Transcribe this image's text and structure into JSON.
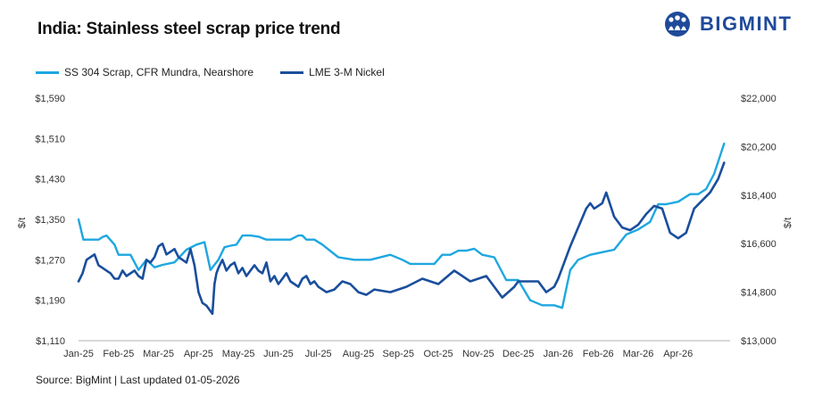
{
  "header": {
    "title": "India: Stainless steel scrap price trend",
    "logo_text": "BIGMINT"
  },
  "footer": {
    "source": "Source: BigMint | Last updated 01-05-2026"
  },
  "colors": {
    "ss304": "#1ea7e0",
    "nickel": "#1a4e9c",
    "logo": "#1f4a9a"
  },
  "icons": {
    "logo": "people-group-icon"
  },
  "chart_data": {
    "type": "line",
    "title": "India: Stainless steel scrap price trend",
    "legend_position": "top-left",
    "grid": false,
    "y_left": {
      "label": "$/t",
      "range": [
        1110,
        1590
      ],
      "ticks": [
        "$1,110",
        "$1,190",
        "$1,270",
        "$1,350",
        "$1,430",
        "$1,510",
        "$1,590"
      ]
    },
    "y_right": {
      "label": "$/t",
      "range": [
        13000,
        22000
      ],
      "ticks": [
        "$13,000",
        "$14,800",
        "$16,600",
        "$18,400",
        "$20,200",
        "$22,000"
      ]
    },
    "x_range": [
      0,
      16.3
    ],
    "x_ticks": [
      "Jan-25",
      "Feb-25",
      "Mar-25",
      "Apr-25",
      "May-25",
      "Jun-25",
      "Jul-25",
      "Aug-25",
      "Sep-25",
      "Oct-25",
      "Nov-25",
      "Dec-25",
      "Jan-26",
      "Feb-26",
      "Mar-26",
      "Apr-26"
    ],
    "series": [
      {
        "name": "SS 304 Scrap, CFR Mundra, Nearshore",
        "axis": "left",
        "color": "#1ea7e0",
        "x": [
          0.0,
          0.12,
          0.5,
          0.6,
          0.7,
          0.9,
          1.0,
          1.3,
          1.5,
          1.7,
          1.9,
          2.1,
          2.4,
          2.7,
          2.95,
          3.15,
          3.3,
          3.5,
          3.65,
          3.8,
          3.95,
          4.1,
          4.3,
          4.5,
          4.7,
          5.0,
          5.3,
          5.5,
          5.6,
          5.7,
          5.9,
          6.1,
          6.5,
          6.9,
          7.3,
          7.8,
          8.1,
          8.3,
          8.6,
          8.9,
          9.1,
          9.3,
          9.5,
          9.7,
          9.9,
          10.1,
          10.4,
          10.7,
          11.0,
          11.3,
          11.6,
          11.9,
          12.1,
          12.3,
          12.5,
          12.8,
          13.1,
          13.4,
          13.7,
          14.0,
          14.3,
          14.5,
          14.7,
          15.0,
          15.3,
          15.5,
          15.7,
          15.9,
          16.15
        ],
        "y": [
          1350,
          1310,
          1310,
          1315,
          1318,
          1300,
          1280,
          1280,
          1250,
          1270,
          1255,
          1260,
          1265,
          1290,
          1300,
          1305,
          1250,
          1270,
          1295,
          1298,
          1300,
          1318,
          1318,
          1316,
          1310,
          1310,
          1310,
          1318,
          1318,
          1310,
          1310,
          1300,
          1275,
          1270,
          1270,
          1280,
          1270,
          1262,
          1262,
          1262,
          1280,
          1280,
          1288,
          1288,
          1292,
          1280,
          1275,
          1230,
          1230,
          1190,
          1180,
          1180,
          1175,
          1250,
          1270,
          1280,
          1285,
          1290,
          1320,
          1330,
          1345,
          1380,
          1380,
          1385,
          1400,
          1400,
          1410,
          1440,
          1500
        ]
      },
      {
        "name": "LME 3-M Nickel",
        "axis": "right",
        "color": "#1a4e9c",
        "x": [
          0.0,
          0.1,
          0.2,
          0.3,
          0.4,
          0.5,
          0.6,
          0.7,
          0.8,
          0.9,
          1.0,
          1.1,
          1.2,
          1.3,
          1.4,
          1.5,
          1.6,
          1.7,
          1.8,
          1.9,
          2.0,
          2.1,
          2.2,
          2.3,
          2.4,
          2.5,
          2.6,
          2.7,
          2.8,
          2.9,
          3.0,
          3.1,
          3.2,
          3.3,
          3.35,
          3.4,
          3.45,
          3.5,
          3.6,
          3.7,
          3.8,
          3.9,
          4.0,
          4.1,
          4.2,
          4.3,
          4.4,
          4.5,
          4.6,
          4.7,
          4.8,
          4.9,
          5.0,
          5.1,
          5.2,
          5.3,
          5.4,
          5.5,
          5.6,
          5.7,
          5.8,
          5.9,
          6.0,
          6.2,
          6.4,
          6.6,
          6.8,
          7.0,
          7.2,
          7.4,
          7.8,
          8.2,
          8.6,
          9.0,
          9.4,
          9.8,
          10.2,
          10.6,
          10.9,
          11.0,
          11.3,
          11.5,
          11.7,
          11.9,
          12.0,
          12.1,
          12.3,
          12.5,
          12.7,
          12.8,
          12.9,
          13.0,
          13.1,
          13.2,
          13.4,
          13.6,
          13.8,
          14.0,
          14.2,
          14.4,
          14.6,
          14.8,
          15.0,
          15.2,
          15.4,
          15.6,
          15.8,
          16.0,
          16.15
        ],
        "y": [
          15200,
          15500,
          16000,
          16100,
          16200,
          15800,
          15700,
          15600,
          15500,
          15300,
          15300,
          15600,
          15400,
          15500,
          15600,
          15400,
          15300,
          16000,
          15900,
          16100,
          16500,
          16600,
          16200,
          16300,
          16400,
          16100,
          16000,
          15900,
          16400,
          15800,
          14800,
          14400,
          14300,
          14100,
          14000,
          15100,
          15500,
          15700,
          16000,
          15600,
          15800,
          15900,
          15500,
          15700,
          15400,
          15600,
          15800,
          15600,
          15500,
          15900,
          15200,
          15400,
          15100,
          15300,
          15500,
          15200,
          15100,
          15000,
          15300,
          15400,
          15100,
          15200,
          15000,
          14800,
          14900,
          15200,
          15100,
          14800,
          14700,
          14900,
          14800,
          15000,
          15300,
          15100,
          15600,
          15200,
          15400,
          14600,
          15000,
          15200,
          15200,
          15200,
          14800,
          15000,
          15300,
          15700,
          16500,
          17200,
          17900,
          18100,
          17900,
          18000,
          18100,
          18500,
          17600,
          17200,
          17100,
          17300,
          17700,
          18000,
          17900,
          17000,
          16800,
          17000,
          17900,
          18200,
          18500,
          19000,
          19600
        ]
      }
    ]
  }
}
